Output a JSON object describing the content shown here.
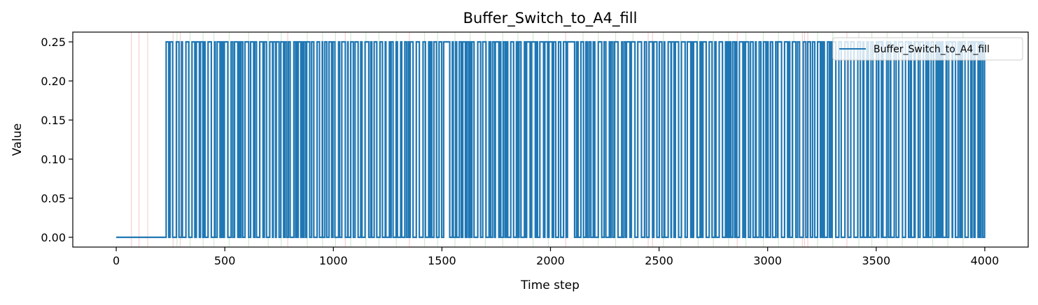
{
  "chart_data": {
    "type": "line",
    "title": "Buffer_Switch_to_A4_fill",
    "xlabel": "Time step",
    "ylabel": "Value",
    "xlim": [
      -200,
      4200
    ],
    "ylim": [
      -0.0125,
      0.2625
    ],
    "x_ticks": [
      0,
      500,
      1000,
      1500,
      2000,
      2500,
      3000,
      3500,
      4000
    ],
    "y_ticks": [
      0.0,
      0.05,
      0.1,
      0.15,
      0.2,
      0.25
    ],
    "x_tick_labels": [
      "0",
      "500",
      "1000",
      "1500",
      "2000",
      "2500",
      "3000",
      "3500",
      "4000"
    ],
    "y_tick_labels": [
      "0.00",
      "0.05",
      "0.10",
      "0.15",
      "0.20",
      "0.25"
    ],
    "legend_position": "top-right",
    "grid": false,
    "series": [
      {
        "name": "Buffer_Switch_to_A4_fill",
        "color": "#1f77b4",
        "x_range": [
          0,
          3999
        ],
        "values_description_free": true,
        "low": 0.0,
        "high": 0.25,
        "initial_zero_until": 230,
        "switching_from": 230,
        "switching_until": 3999,
        "gap_intervals_high": [
          [
            1505,
            1525
          ],
          [
            2080,
            2110
          ]
        ]
      }
    ],
    "event_lines": [
      {
        "color": "#d62728",
        "x": [
          70,
          105,
          145,
          262,
          295,
          790,
          1055,
          1350,
          2070,
          2450,
          2470,
          2860,
          3160,
          3170,
          3185,
          3365
        ]
      },
      {
        "color": "#2ca02c",
        "x": [
          280,
          340,
          400,
          450,
          520,
          610,
          700,
          760,
          880,
          950,
          1010,
          1080,
          1150,
          1210,
          1290,
          1420,
          1480,
          1560,
          1630,
          1700,
          1780,
          1850,
          1920,
          1990,
          2150,
          2220,
          2300,
          2380,
          2520,
          2600,
          2680,
          2750,
          2820,
          2900,
          2980,
          3050,
          3120,
          3230,
          3300,
          3420,
          3480,
          3550,
          3620,
          3690,
          3760,
          3830,
          3900
        ]
      }
    ]
  }
}
